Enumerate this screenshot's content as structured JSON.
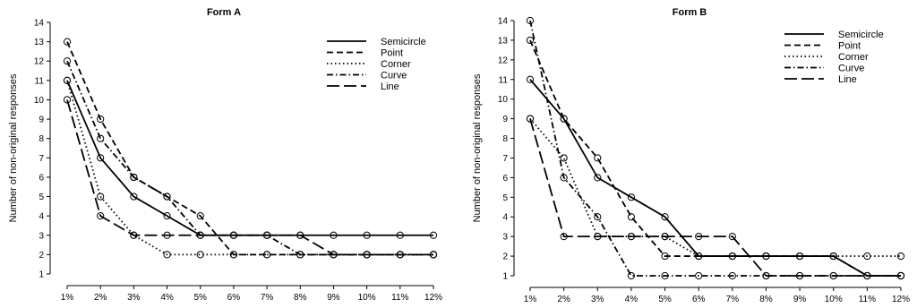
{
  "chart_data": [
    {
      "type": "line",
      "title": "Form A",
      "ylabel": "Number of non-original responses",
      "xlabel": "",
      "categories": [
        "1%",
        "2%",
        "3%",
        "4%",
        "5%",
        "6%",
        "7%",
        "8%",
        "9%",
        "10%",
        "11%",
        "12%"
      ],
      "yticks": [
        1,
        2,
        3,
        4,
        5,
        6,
        7,
        8,
        9,
        10,
        11,
        12,
        13,
        14
      ],
      "ylim": [
        1,
        14
      ],
      "legend_position": "top-right",
      "series": [
        {
          "name": "Semicircle",
          "dash": "solid",
          "values": [
            11,
            7,
            5,
            4,
            3,
            3,
            3,
            3,
            3,
            3,
            3,
            3
          ]
        },
        {
          "name": "Point",
          "dash": "dashed",
          "values": [
            13,
            9,
            6,
            5,
            4,
            2,
            2,
            2,
            2,
            2,
            2,
            2
          ]
        },
        {
          "name": "Corner",
          "dash": "dotted",
          "values": [
            11,
            5,
            3,
            2,
            2,
            2,
            2,
            2,
            2,
            2,
            2,
            2
          ]
        },
        {
          "name": "Curve",
          "dash": "dashdot",
          "values": [
            12,
            8,
            6,
            5,
            3,
            3,
            3,
            2,
            2,
            2,
            2,
            2
          ]
        },
        {
          "name": "Line",
          "dash": "longdash",
          "values": [
            10,
            4,
            3,
            3,
            3,
            3,
            3,
            3,
            2,
            2,
            2,
            2
          ]
        }
      ]
    },
    {
      "type": "line",
      "title": "Form B",
      "ylabel": "Number of non-original responses",
      "xlabel": "",
      "categories": [
        "1%",
        "2%",
        "3%",
        "4%",
        "5%",
        "6%",
        "7%",
        "8%",
        "9%",
        "10%",
        "11%",
        "12%"
      ],
      "yticks": [
        1,
        2,
        3,
        4,
        5,
        6,
        7,
        8,
        9,
        10,
        11,
        12,
        13,
        14
      ],
      "ylim": [
        1,
        14
      ],
      "legend_position": "top-right",
      "series": [
        {
          "name": "Semicircle",
          "dash": "solid",
          "values": [
            11,
            9,
            6,
            5,
            4,
            2,
            2,
            2,
            2,
            2,
            1,
            1
          ]
        },
        {
          "name": "Point",
          "dash": "dashed",
          "values": [
            13,
            9,
            7,
            4,
            2,
            2,
            2,
            2,
            2,
            2,
            1,
            1
          ]
        },
        {
          "name": "Corner",
          "dash": "dotted",
          "values": [
            9,
            7,
            3,
            3,
            3,
            2,
            2,
            2,
            2,
            2,
            2,
            2
          ]
        },
        {
          "name": "Curve",
          "dash": "dashdot",
          "values": [
            14,
            6,
            4,
            1,
            1,
            1,
            1,
            1,
            1,
            1,
            1,
            1
          ]
        },
        {
          "name": "Line",
          "dash": "longdash",
          "values": [
            9,
            3,
            3,
            3,
            3,
            3,
            3,
            1,
            1,
            1,
            1,
            1
          ]
        }
      ]
    }
  ]
}
